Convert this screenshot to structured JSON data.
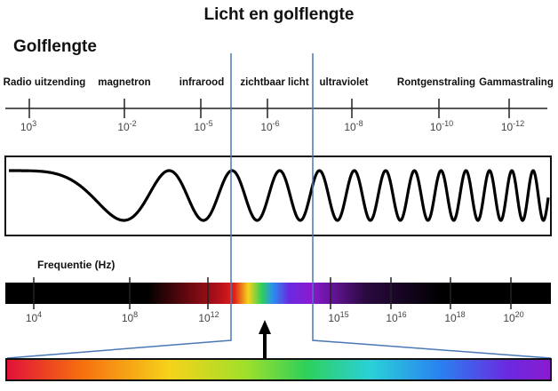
{
  "title": "Licht en golflengte",
  "wavelength_heading": "Golflengte",
  "frequency_heading": "Frequentie (Hz)",
  "bands": [
    {
      "label": "Radio uitzending"
    },
    {
      "label": "magnetron"
    },
    {
      "label": "infrarood"
    },
    {
      "label": "zichtbaar licht"
    },
    {
      "label": "ultraviolet"
    },
    {
      "label": "Rontgenstraling"
    },
    {
      "label": "Gammastraling"
    }
  ],
  "wavelength_ticks": [
    {
      "base": "10",
      "exp": "3"
    },
    {
      "base": "10",
      "exp": "-2"
    },
    {
      "base": "10",
      "exp": "-5"
    },
    {
      "base": "10",
      "exp": "-6"
    },
    {
      "base": "10",
      "exp": "-8"
    },
    {
      "base": "10",
      "exp": "-10"
    },
    {
      "base": "10",
      "exp": "-12"
    }
  ],
  "frequency_ticks": [
    {
      "base": "10",
      "exp": "4"
    },
    {
      "base": "10",
      "exp": "8"
    },
    {
      "base": "10",
      "exp": "12"
    },
    {
      "base": "10",
      "exp": "15"
    },
    {
      "base": "10",
      "exp": "16"
    },
    {
      "base": "10",
      "exp": "18"
    },
    {
      "base": "10",
      "exp": "20"
    }
  ],
  "colors": {
    "guide_lines": "#4a78b5",
    "axis": "#222222",
    "wave": "#000000",
    "freq_bar_dark": "#000000",
    "freq_bar_red": "#b0101a",
    "freq_bar_violet": "#7a1fc8",
    "spectrum": [
      "#e0103a",
      "#f56a10",
      "#f7d21a",
      "#9fe02a",
      "#2fd05a",
      "#2ad0d8",
      "#2a7ff0",
      "#6a2ae0",
      "#8a1ad0"
    ]
  }
}
